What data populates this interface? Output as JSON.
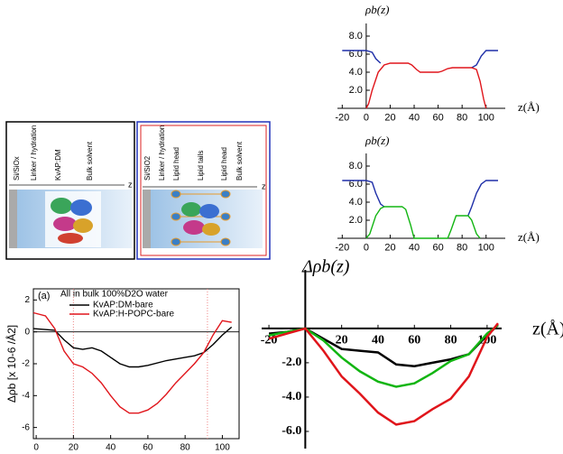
{
  "chart_data": [
    {
      "type": "line",
      "ylabel": "ρb(z)",
      "xlabel": "z(Å)",
      "xlim": [
        -24,
        116
      ],
      "ylim": [
        0,
        9
      ],
      "xticks": [
        -20,
        0,
        20,
        40,
        60,
        80,
        100
      ],
      "yticks": [
        {
          "value": 2,
          "label": "2.0"
        },
        {
          "value": 4,
          "label": "4.0"
        },
        {
          "value": 6,
          "label": "6.0"
        },
        {
          "value": 8,
          "label": "8.0"
        }
      ],
      "series": [
        {
          "color": "#1f2fa8",
          "x": [
            -20,
            -10,
            0,
            5,
            8,
            12,
            50,
            88,
            92,
            96,
            100,
            105,
            110
          ],
          "values": [
            6.4,
            6.4,
            6.4,
            6.2,
            5.5,
            5.0,
            null,
            4.5,
            4.8,
            5.8,
            6.4,
            6.4,
            6.4
          ]
        },
        {
          "color": "#e0151b",
          "x": [
            0,
            2,
            5,
            10,
            15,
            20,
            35,
            38,
            42,
            45,
            60,
            63,
            68,
            72,
            88,
            92,
            95,
            98,
            100
          ],
          "values": [
            0,
            0.5,
            2,
            4,
            4.8,
            5.0,
            5.0,
            4.8,
            4.3,
            4.0,
            4.0,
            4.1,
            4.4,
            4.5,
            4.5,
            4.3,
            3,
            1,
            0
          ]
        }
      ]
    },
    {
      "type": "line",
      "ylabel": "ρb(z)",
      "xlabel": "z(Å)",
      "xlim": [
        -24,
        116
      ],
      "ylim": [
        0,
        9
      ],
      "xticks": [
        -20,
        0,
        20,
        40,
        60,
        80,
        100
      ],
      "yticks": [
        {
          "value": 2,
          "label": "2.0"
        },
        {
          "value": 4,
          "label": "4.0"
        },
        {
          "value": 6,
          "label": "6.0"
        },
        {
          "value": 8,
          "label": "8.0"
        }
      ],
      "series": [
        {
          "color": "#1f2fa8",
          "x": [
            -20,
            -10,
            0,
            5,
            8,
            12,
            15,
            50,
            85,
            88,
            92,
            96,
            100,
            105,
            110
          ],
          "values": [
            6.4,
            6.4,
            6.4,
            6.2,
            5,
            3.8,
            3.5,
            null,
            2.5,
            3.5,
            5,
            6,
            6.4,
            6.4,
            6.4
          ]
        },
        {
          "color": "#12b512",
          "x": [
            0,
            3,
            8,
            12,
            15,
            30,
            33,
            37,
            40,
            68,
            71,
            75,
            85,
            88,
            92,
            95
          ],
          "values": [
            0,
            0.5,
            2.5,
            3.3,
            3.5,
            3.5,
            3.2,
            1.5,
            0,
            0,
            1,
            2.5,
            2.5,
            2,
            0.5,
            0
          ]
        }
      ]
    },
    {
      "type": "line",
      "panel_label": "(a)",
      "annotation": "All in bulk 100%D2O water",
      "ylabel": "Δρb [x 10-6 /Å2]",
      "xlim": [
        -1.5,
        109
      ],
      "ylim": [
        -6.7,
        2.7
      ],
      "xticks": [
        0,
        20,
        40,
        60,
        80,
        100
      ],
      "yticks": [
        2,
        0,
        -2,
        -4,
        -6
      ],
      "vlines": [
        20,
        92
      ],
      "series": [
        {
          "name": "KvAP:DM-bare",
          "color": "#000000",
          "x": [
            -1.5,
            10,
            15,
            20,
            25,
            30,
            35,
            40,
            45,
            50,
            55,
            60,
            70,
            80,
            85,
            90,
            95,
            100,
            105
          ],
          "values": [
            0.2,
            0.1,
            -0.5,
            -1.0,
            -1.1,
            -1.0,
            -1.2,
            -1.6,
            -2.0,
            -2.2,
            -2.2,
            -2.1,
            -1.8,
            -1.6,
            -1.5,
            -1.3,
            -0.8,
            -0.2,
            0.3
          ]
        },
        {
          "name": "KvAP:H-POPC-bare",
          "color": "#e0151b",
          "x": [
            -1.5,
            5,
            10,
            15,
            20,
            25,
            30,
            35,
            40,
            45,
            50,
            55,
            60,
            65,
            70,
            75,
            80,
            85,
            90,
            95,
            100,
            105
          ],
          "values": [
            1.2,
            1.0,
            0.2,
            -1.2,
            -2.0,
            -2.2,
            -2.6,
            -3.2,
            -4.0,
            -4.7,
            -5.1,
            -5.1,
            -4.9,
            -4.5,
            -3.9,
            -3.2,
            -2.6,
            -2.0,
            -1.3,
            -0.2,
            0.7,
            0.6
          ]
        }
      ]
    },
    {
      "type": "line",
      "ylabel": "Δρb(z)",
      "xlabel": "z(Å)",
      "xlim": [
        -24,
        108
      ],
      "ylim": [
        -7,
        3.2
      ],
      "xticks": [
        -20,
        20,
        40,
        60,
        80,
        100
      ],
      "yticks": [
        {
          "value": -2,
          "label": "-2.0"
        },
        {
          "value": -4,
          "label": "-4.0"
        },
        {
          "value": -6,
          "label": "-6.0"
        }
      ],
      "series": [
        {
          "color": "#000000",
          "x": [
            -20,
            -10,
            0,
            10,
            20,
            30,
            40,
            50,
            60,
            70,
            80,
            90,
            100,
            106
          ],
          "values": [
            -0.3,
            -0.2,
            0,
            -0.6,
            -1.2,
            -1.3,
            -1.4,
            -2.1,
            -2.2,
            -2.0,
            -1.8,
            -1.5,
            -0.4,
            0.2
          ]
        },
        {
          "color": "#12b512",
          "x": [
            -20,
            -10,
            0,
            10,
            20,
            30,
            40,
            50,
            60,
            70,
            80,
            90,
            100,
            106
          ],
          "values": [
            -0.4,
            -0.2,
            0,
            -0.7,
            -1.7,
            -2.5,
            -3.1,
            -3.4,
            -3.2,
            -2.6,
            -1.9,
            -1.5,
            -0.3,
            0.2
          ]
        },
        {
          "color": "#e0151b",
          "x": [
            -20,
            -10,
            0,
            10,
            20,
            30,
            40,
            50,
            60,
            70,
            80,
            90,
            100,
            106
          ],
          "values": [
            -0.6,
            -0.3,
            0,
            -1.3,
            -2.8,
            -3.8,
            -4.9,
            -5.6,
            -5.4,
            -4.7,
            -4.1,
            -2.8,
            -0.5,
            0.3
          ]
        }
      ]
    }
  ],
  "schematic": {
    "panels": [
      {
        "labels": [
          "Si/SiOx",
          "Linker / hydration",
          "KvAP:DM",
          "Bulk solvent"
        ],
        "axis": "z"
      },
      {
        "labels": [
          "Si/SiO2",
          "Linker / hydration",
          "Lipid head",
          "Lipid tails",
          "Lipid head",
          "Bulk solvent"
        ],
        "axis": "z"
      }
    ]
  }
}
